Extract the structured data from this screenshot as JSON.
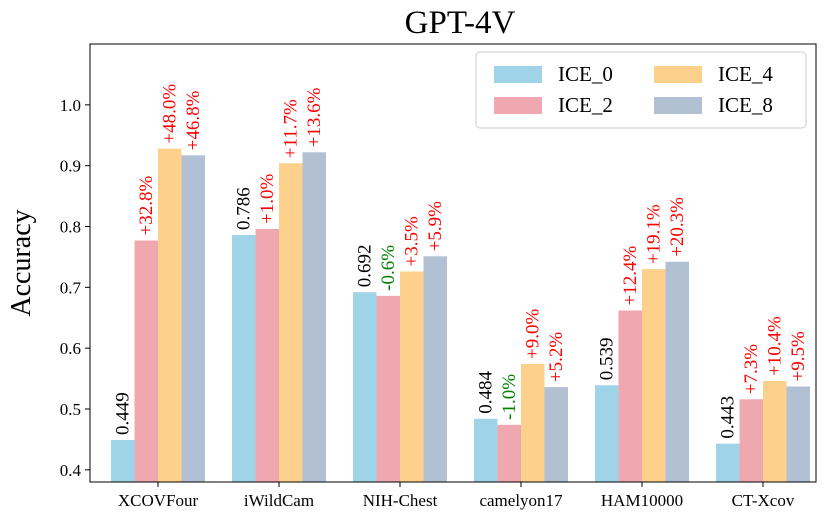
{
  "chart_data": {
    "type": "bar",
    "title": "GPT-4V",
    "xlabel": "",
    "ylabel": "Accuracy",
    "ylim": [
      0.38,
      1.1
    ],
    "yticks": [
      "0.4",
      "0.5",
      "0.6",
      "0.7",
      "0.8",
      "0.9",
      "1.0"
    ],
    "categories": [
      "XCOVFour",
      "iWildCam",
      "NIH-Chest",
      "camelyon17",
      "HAM10000",
      "CT-Xcov"
    ],
    "series": [
      {
        "name": "ICE_0",
        "color": "#9fd3e8",
        "values": [
          0.449,
          0.786,
          0.692,
          0.484,
          0.539,
          0.443
        ]
      },
      {
        "name": "ICE_2",
        "color": "#f0a8b0",
        "values": [
          0.777,
          0.796,
          0.686,
          0.474,
          0.662,
          0.516
        ]
      },
      {
        "name": "ICE_4",
        "color": "#fdd08c",
        "values": [
          0.928,
          0.904,
          0.726,
          0.574,
          0.73,
          0.546
        ]
      },
      {
        "name": "ICE_8",
        "color": "#b2c0d4",
        "values": [
          0.917,
          0.922,
          0.751,
          0.536,
          0.742,
          0.537
        ]
      }
    ],
    "annotations": [
      [
        "0.449",
        "+32.8%",
        "+48.0%",
        "+46.8%"
      ],
      [
        "0.786",
        "+1.0%",
        "+11.7%",
        "+13.6%"
      ],
      [
        "0.692",
        "-0.6%",
        "+3.5%",
        "+5.9%"
      ],
      [
        "0.484",
        "-1.0%",
        "+9.0%",
        "+5.2%"
      ],
      [
        "0.539",
        "+12.4%",
        "+19.1%",
        "+20.3%"
      ],
      [
        "0.443",
        "+7.3%",
        "+10.4%",
        "+9.5%"
      ]
    ],
    "annotation_colors": {
      "base": "#000000",
      "gain": "#ff0000",
      "loss": "#008000"
    },
    "legend": {
      "position": "top-right",
      "columns": 2
    },
    "grid": false
  }
}
